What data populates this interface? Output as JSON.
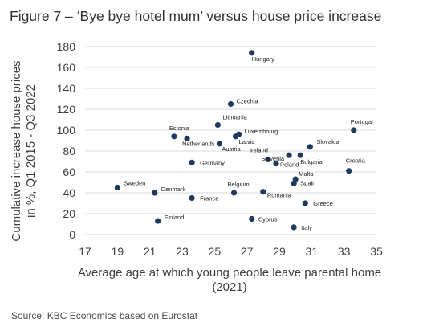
{
  "title": "Figure 7 – ‘Bye bye hotel mum’ versus house price increase",
  "source": "Source: KBC Economics based on Eurostat",
  "colors": {
    "marker": "#1f3a5f",
    "grid": "#d9d9d9",
    "text": "#404040"
  },
  "chart_data": {
    "type": "scatter",
    "xlabel_line1": "Average age at which young people leave parental home",
    "xlabel_line2": "(2021)",
    "ylabel_line1": "Cumulative increase house prices",
    "ylabel_line2": "in %, Q1 2015 - Q3 2022",
    "xlim": [
      17,
      35
    ],
    "ylim": [
      0,
      180
    ],
    "xticks": [
      "17",
      "19",
      "21",
      "23",
      "25",
      "27",
      "29",
      "31",
      "33",
      "35"
    ],
    "yticks": [
      "0",
      "20",
      "40",
      "60",
      "80",
      "100",
      "120",
      "140",
      "160",
      "180"
    ],
    "grid": "horizontal",
    "points": [
      {
        "label": "Hungary",
        "x": 27.3,
        "y": 174
      },
      {
        "label": "Czechia",
        "x": 26.0,
        "y": 125
      },
      {
        "label": "Portugal",
        "x": 33.6,
        "y": 100
      },
      {
        "label": "Lithuania",
        "x": 25.2,
        "y": 105
      },
      {
        "label": "Estonia",
        "x": 22.5,
        "y": 94
      },
      {
        "label": "Netherlands",
        "x": 23.3,
        "y": 92
      },
      {
        "label": "Luxembourg",
        "x": 26.5,
        "y": 96
      },
      {
        "label": "Latvia",
        "x": 26.3,
        "y": 94
      },
      {
        "label": "Austria",
        "x": 25.3,
        "y": 87
      },
      {
        "label": "Slovakia",
        "x": 30.9,
        "y": 84
      },
      {
        "label": "Slovenia",
        "x": 29.6,
        "y": 76
      },
      {
        "label": "Bulgaria",
        "x": 30.3,
        "y": 76
      },
      {
        "label": "Ireland",
        "x": 28.3,
        "y": 72
      },
      {
        "label": "Poland",
        "x": 28.8,
        "y": 68
      },
      {
        "label": "Germany",
        "x": 23.6,
        "y": 69
      },
      {
        "label": "Croatia",
        "x": 33.3,
        "y": 61
      },
      {
        "label": "Malta",
        "x": 30.0,
        "y": 53
      },
      {
        "label": "Spain",
        "x": 29.9,
        "y": 49
      },
      {
        "label": "Sweden",
        "x": 19.0,
        "y": 45
      },
      {
        "label": "Denmark",
        "x": 21.3,
        "y": 40
      },
      {
        "label": "Belgium",
        "x": 26.2,
        "y": 40
      },
      {
        "label": "Romania",
        "x": 28.0,
        "y": 41
      },
      {
        "label": "France",
        "x": 23.6,
        "y": 35
      },
      {
        "label": "Greece",
        "x": 30.6,
        "y": 30
      },
      {
        "label": "Cyprus",
        "x": 27.3,
        "y": 15
      },
      {
        "label": "Finland",
        "x": 21.5,
        "y": 13
      },
      {
        "label": "Italy",
        "x": 29.9,
        "y": 7
      }
    ]
  }
}
